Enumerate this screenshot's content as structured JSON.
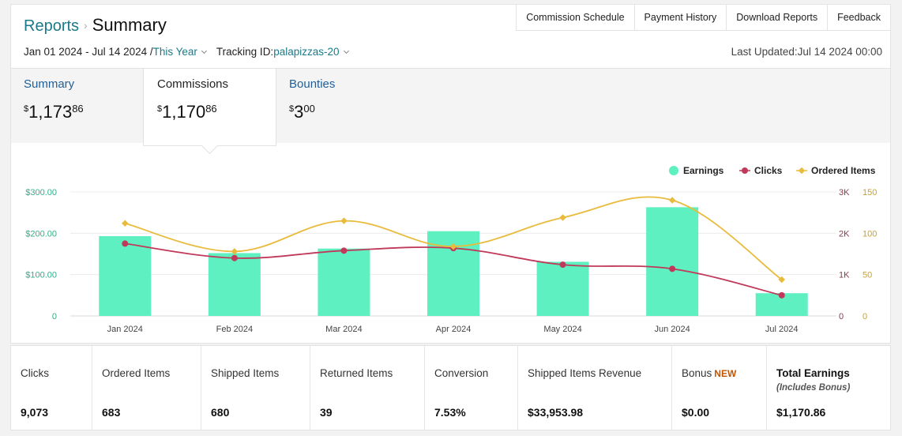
{
  "breadcrumb": {
    "root": "Reports",
    "current": "Summary"
  },
  "top_tabs": [
    "Commission Schedule",
    "Payment History",
    "Download Reports",
    "Feedback"
  ],
  "filters": {
    "date_range": "Jan 01 2024 - Jul 14 2024 /",
    "period": "This Year",
    "tracking_label": "Tracking ID:",
    "tracking_id": "palapizzas-20"
  },
  "last_updated": "Last Updated:Jul 14 2024 00:00",
  "kpis": [
    {
      "label": "Summary",
      "dollars": "1,173",
      "cents": "86",
      "currency": "$"
    },
    {
      "label": "Commissions",
      "dollars": "1,170",
      "cents": "86",
      "currency": "$"
    },
    {
      "label": "Bounties",
      "dollars": "3",
      "cents": "00",
      "currency": "$"
    }
  ],
  "chart_data": {
    "type": "bar",
    "categories": [
      "Jan 2024",
      "Feb 2024",
      "Mar 2024",
      "Apr 2024",
      "May 2024",
      "Jun 2024",
      "Jul 2024"
    ],
    "series": [
      {
        "name": "Earnings",
        "kind": "bar",
        "axis": "left",
        "color": "#5ef0c0",
        "values": [
          193,
          152,
          163,
          205,
          131,
          263,
          55
        ]
      },
      {
        "name": "Clicks",
        "kind": "line",
        "axis": "right1",
        "color": "#c0395a",
        "values": [
          1750,
          1400,
          1580,
          1640,
          1240,
          1140,
          500
        ]
      },
      {
        "name": "Ordered Items",
        "kind": "line",
        "axis": "right2",
        "color": "#e8bb3c",
        "values": [
          112,
          78,
          115,
          84,
          119,
          140,
          44
        ]
      }
    ],
    "y_left": {
      "ticks": [
        "0",
        "$100.00",
        "$200.00",
        "$300.00"
      ],
      "range": [
        0,
        300
      ]
    },
    "y_right1": {
      "ticks": [
        "0",
        "1K",
        "2K",
        "3K"
      ],
      "range": [
        0,
        3000
      ]
    },
    "y_right2": {
      "ticks": [
        "0",
        "50",
        "100",
        "150"
      ],
      "range": [
        0,
        150
      ]
    },
    "legend_position": "top-right",
    "grid": true
  },
  "stats": [
    {
      "name": "Clicks",
      "value": "9,073"
    },
    {
      "name": "Ordered Items",
      "value": "683"
    },
    {
      "name": "Shipped Items",
      "value": "680"
    },
    {
      "name": "Returned Items",
      "value": "39"
    },
    {
      "name": "Conversion",
      "value": "7.53%"
    },
    {
      "name": "Shipped Items Revenue",
      "value": "$33,953.98"
    },
    {
      "name": "Bonus",
      "badge": "NEW",
      "value": "$0.00"
    },
    {
      "name": "Total Earnings",
      "sub": "(Includes Bonus)",
      "value": "$1,170.86"
    }
  ],
  "colors": {
    "accent_teal": "#1a7a8a",
    "link_blue": "#1f5f9a",
    "badge_orange": "#c45500"
  }
}
